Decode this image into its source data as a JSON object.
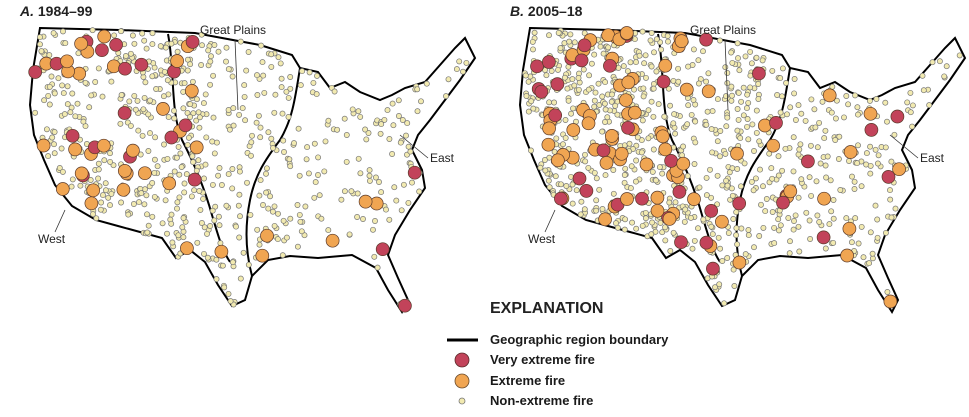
{
  "panels": [
    {
      "letter": "A.",
      "period": "1984–99",
      "regions": {
        "great_plains": "Great Plains",
        "west": "West",
        "east": "East"
      }
    },
    {
      "letter": "B.",
      "period": "2005–18",
      "regions": {
        "great_plains": "Great Plains",
        "west": "West",
        "east": "East"
      }
    }
  ],
  "explanation": {
    "title": "EXPLANATION",
    "items": [
      "Geographic region boundary",
      "Very extreme fire",
      "Extreme fire",
      "Non-extreme fire"
    ]
  }
}
